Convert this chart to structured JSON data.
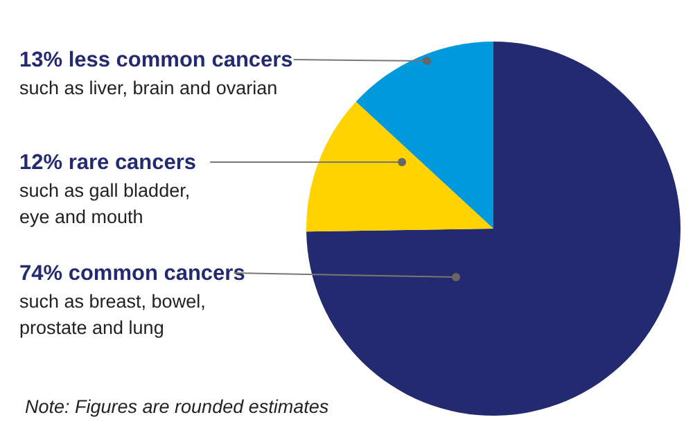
{
  "chart_data": {
    "type": "pie",
    "categories": [
      "common cancers",
      "rare cancers",
      "less common cancers"
    ],
    "values": [
      74,
      12,
      13
    ],
    "value_labels": [
      "74%",
      "12%",
      "13%"
    ],
    "colors": [
      "#232a70",
      "#ffd200",
      "#0099dc"
    ],
    "legend": false,
    "annotations": [
      "such as breast, bowel,\nprostate and lung",
      "such as gall bladder,\neye and mouth",
      "such as liver, brain and ovarian",
      "Note: Figures are rounded estimates"
    ]
  }
}
